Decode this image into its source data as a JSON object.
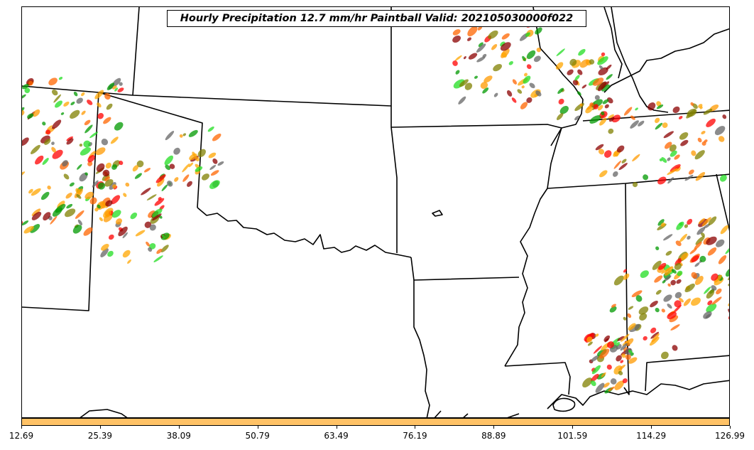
{
  "title": "Hourly Precipitation 12.7 mm/hr Paintball Valid: 202105030000f022",
  "colors": {
    "paintball_members": [
      "#ff0000",
      "#ff6600",
      "#ff9900",
      "#ffa500",
      "#22dd22",
      "#009900",
      "#808000",
      "#8b0000",
      "#666666"
    ],
    "colorbar_fill": "#ffc266",
    "boundary_line": "#000000"
  },
  "colorbar": {
    "tick_labels": [
      "12.69",
      "25.39",
      "38.09",
      "50.79",
      "63.49",
      "76.19",
      "88.89",
      "101.59",
      "114.29",
      "126.99"
    ]
  },
  "map": {
    "region": "southern-central-united-states",
    "layers": [
      "state-boundaries",
      "coastline",
      "precipitation-paintball-blobs"
    ]
  }
}
